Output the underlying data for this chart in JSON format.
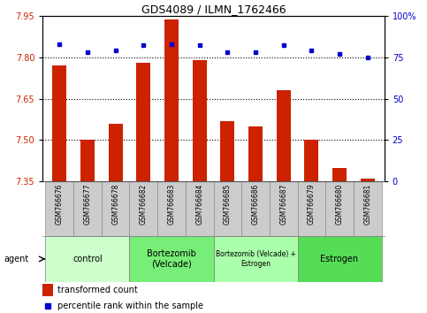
{
  "title": "GDS4089 / ILMN_1762466",
  "samples": [
    "GSM766676",
    "GSM766677",
    "GSM766678",
    "GSM766682",
    "GSM766683",
    "GSM766684",
    "GSM766685",
    "GSM766686",
    "GSM766687",
    "GSM766679",
    "GSM766680",
    "GSM766681"
  ],
  "bar_values": [
    7.77,
    7.5,
    7.56,
    7.78,
    7.935,
    7.79,
    7.57,
    7.55,
    7.68,
    7.5,
    7.4,
    7.36
  ],
  "percentile_values": [
    83,
    78,
    79,
    82,
    83,
    82,
    78,
    78,
    82,
    79,
    77,
    75
  ],
  "bar_color": "#CC2200",
  "dot_color": "#0000CC",
  "bar_bottom": 7.35,
  "ylim_left": [
    7.35,
    7.95
  ],
  "ylim_right": [
    0,
    100
  ],
  "yticks_left": [
    7.35,
    7.5,
    7.65,
    7.8,
    7.95
  ],
  "yticks_right": [
    0,
    25,
    50,
    75,
    100
  ],
  "ytick_labels_right": [
    "0",
    "25",
    "50",
    "75",
    "100%"
  ],
  "hlines": [
    7.8,
    7.65,
    7.5
  ],
  "groups": [
    {
      "label": "control",
      "start": 0,
      "end": 3,
      "color": "#CCFFCC"
    },
    {
      "label": "Bortezomib\n(Velcade)",
      "start": 3,
      "end": 6,
      "color": "#77EE77"
    },
    {
      "label": "Bortezomib (Velcade) +\nEstrogen",
      "start": 6,
      "end": 9,
      "color": "#AAFFAA"
    },
    {
      "label": "Estrogen",
      "start": 9,
      "end": 12,
      "color": "#55DD55"
    }
  ],
  "agent_label": "agent",
  "legend_bar_label": "transformed count",
  "legend_dot_label": "percentile rank within the sample",
  "bar_color_label": "#CC2200",
  "dot_color_label": "#0000CC",
  "tick_area_color": "#CCCCCC",
  "bg_color": "#FFFFFF"
}
